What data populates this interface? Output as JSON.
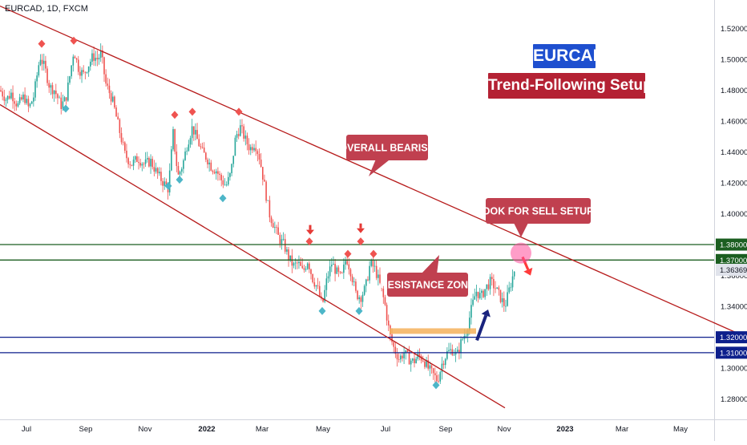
{
  "symbol": "EURCAD, 1D, FXCM",
  "title": "EURCAD",
  "subtitle": "Trend-Following Setup",
  "annotations": {
    "overall_bearish": "OVERALL BEARISH",
    "look_for_sell": "LOOK FOR SELL SETUPS",
    "resistance_zone": "RESISTANCE ZONE"
  },
  "colors": {
    "bull_candle": "#26a69a",
    "bear_candle": "#ef5350",
    "trendline": "#b71c1c",
    "resistance_lines": "#1b5e20",
    "support_lines": "#0d1f8c",
    "zone": "#f5b05a",
    "callout": "#c0404f",
    "title_blue": "#1e4fcf",
    "title_red": "#b42133",
    "marker_red": "#ef5350",
    "marker_teal": "#4db6c8"
  },
  "chart_data": {
    "type": "candlestick",
    "x_tick_labels": [
      "Jul",
      "Sep",
      "Nov",
      "2022",
      "Mar",
      "May",
      "Jul",
      "Sep",
      "Nov",
      "2023",
      "Mar",
      "May"
    ],
    "y_ticks": [
      1.28,
      1.3,
      1.32,
      1.34,
      1.36,
      1.38,
      1.4,
      1.42,
      1.44,
      1.46,
      1.48,
      1.5,
      1.52
    ],
    "y_tick_labels": [
      "1.28000",
      "1.30000",
      "1.32000",
      "1.34000",
      "1.36000",
      "1.38000",
      "1.40000",
      "1.42000",
      "1.44000",
      "1.46000",
      "1.48000",
      "1.50000",
      "1.52000"
    ],
    "ylim": [
      1.2659,
      1.5436
    ],
    "price_path": [
      [
        0,
        1.48
      ],
      [
        8,
        1.474
      ],
      [
        14,
        1.478
      ],
      [
        22,
        1.47
      ],
      [
        30,
        1.476
      ],
      [
        36,
        1.468
      ],
      [
        42,
        1.476
      ],
      [
        50,
        1.502
      ],
      [
        56,
        1.494
      ],
      [
        62,
        1.482
      ],
      [
        68,
        1.48
      ],
      [
        76,
        1.47
      ],
      [
        82,
        1.474
      ],
      [
        88,
        1.492
      ],
      [
        92,
        1.506
      ],
      [
        98,
        1.494
      ],
      [
        104,
        1.49
      ],
      [
        110,
        1.496
      ],
      [
        116,
        1.502
      ],
      [
        122,
        1.5
      ],
      [
        126,
        1.504
      ],
      [
        132,
        1.484
      ],
      [
        140,
        1.474
      ],
      [
        148,
        1.456
      ],
      [
        156,
        1.438
      ],
      [
        164,
        1.432
      ],
      [
        172,
        1.436
      ],
      [
        180,
        1.432
      ],
      [
        188,
        1.434
      ],
      [
        196,
        1.426
      ],
      [
        204,
        1.42
      ],
      [
        210,
        1.416
      ],
      [
        216,
        1.452
      ],
      [
        222,
        1.424
      ],
      [
        228,
        1.432
      ],
      [
        234,
        1.446
      ],
      [
        240,
        1.456
      ],
      [
        246,
        1.448
      ],
      [
        252,
        1.44
      ],
      [
        258,
        1.436
      ],
      [
        264,
        1.43
      ],
      [
        270,
        1.428
      ],
      [
        276,
        1.422
      ],
      [
        282,
        1.418
      ],
      [
        288,
        1.426
      ],
      [
        294,
        1.45
      ],
      [
        300,
        1.456
      ],
      [
        306,
        1.448
      ],
      [
        312,
        1.442
      ],
      [
        318,
        1.446
      ],
      [
        324,
        1.436
      ],
      [
        330,
        1.418
      ],
      [
        336,
        1.4
      ],
      [
        342,
        1.392
      ],
      [
        348,
        1.384
      ],
      [
        354,
        1.38
      ],
      [
        360,
        1.372
      ],
      [
        366,
        1.366
      ],
      [
        372,
        1.368
      ],
      [
        378,
        1.362
      ],
      [
        384,
        1.37
      ],
      [
        390,
        1.358
      ],
      [
        396,
        1.352
      ],
      [
        402,
        1.34
      ],
      [
        408,
        1.358
      ],
      [
        414,
        1.368
      ],
      [
        420,
        1.362
      ],
      [
        426,
        1.358
      ],
      [
        432,
        1.372
      ],
      [
        438,
        1.362
      ],
      [
        444,
        1.348
      ],
      [
        450,
        1.346
      ],
      [
        456,
        1.352
      ],
      [
        462,
        1.368
      ],
      [
        468,
        1.364
      ],
      [
        474,
        1.354
      ],
      [
        480,
        1.342
      ],
      [
        486,
        1.322
      ],
      [
        492,
        1.312
      ],
      [
        498,
        1.306
      ],
      [
        504,
        1.31
      ],
      [
        510,
        1.306
      ],
      [
        516,
        1.304
      ],
      [
        522,
        1.308
      ],
      [
        528,
        1.306
      ],
      [
        534,
        1.3
      ],
      [
        540,
        1.296
      ],
      [
        546,
        1.292
      ],
      [
        552,
        1.304
      ],
      [
        558,
        1.31
      ],
      [
        564,
        1.312
      ],
      [
        570,
        1.308
      ],
      [
        576,
        1.318
      ],
      [
        582,
        1.324
      ],
      [
        588,
        1.338
      ],
      [
        594,
        1.35
      ],
      [
        600,
        1.346
      ],
      [
        606,
        1.352
      ],
      [
        612,
        1.356
      ],
      [
        618,
        1.352
      ],
      [
        624,
        1.346
      ],
      [
        630,
        1.34
      ],
      [
        636,
        1.352
      ],
      [
        642,
        1.364
      ]
    ],
    "horizontal_levels": [
      {
        "price": 1.38,
        "label": "1.38000",
        "kind": "resistance"
      },
      {
        "price": 1.37,
        "label": "1.37000",
        "kind": "resistance"
      },
      {
        "price": 1.32,
        "label": "1.32000",
        "kind": "support"
      },
      {
        "price": 1.31,
        "label": "1.31000",
        "kind": "support"
      }
    ],
    "current_price": {
      "price": 1.36369,
      "label": "1.36369"
    },
    "trendlines": [
      {
        "from": [
          0,
          1.5344
        ],
        "to": [
          932,
          1.3199
        ]
      },
      {
        "from": [
          0,
          1.4706
        ],
        "to": [
          630,
          1.2743
        ]
      }
    ],
    "zone": {
      "from": 486,
      "to": 594,
      "price_top": 1.3258,
      "price_bottom": 1.3222
    },
    "markers_red": [
      [
        52,
        1.51
      ],
      [
        92,
        1.512
      ],
      [
        218,
        1.464
      ],
      [
        240,
        1.466
      ],
      [
        298,
        1.466
      ],
      [
        386,
        1.382
      ],
      [
        434,
        1.374
      ],
      [
        450,
        1.382
      ],
      [
        466,
        1.374
      ]
    ],
    "markers_teal": [
      [
        82,
        1.468
      ],
      [
        210,
        1.418
      ],
      [
        224,
        1.422
      ],
      [
        278,
        1.41
      ],
      [
        402,
        1.337
      ],
      [
        448,
        1.337
      ],
      [
        544,
        1.289
      ]
    ],
    "arrows": [
      {
        "kind": "up",
        "color": "#1a237e",
        "from": [
          595,
          1.318
        ],
        "to": [
          609,
          1.338
        ]
      },
      {
        "kind": "down",
        "color": "#ff3b3b",
        "from": [
          652,
          1.372
        ],
        "to": [
          662,
          1.36
        ]
      }
    ],
    "highlight_circle": {
      "x": 650,
      "price": 1.3745
    }
  }
}
